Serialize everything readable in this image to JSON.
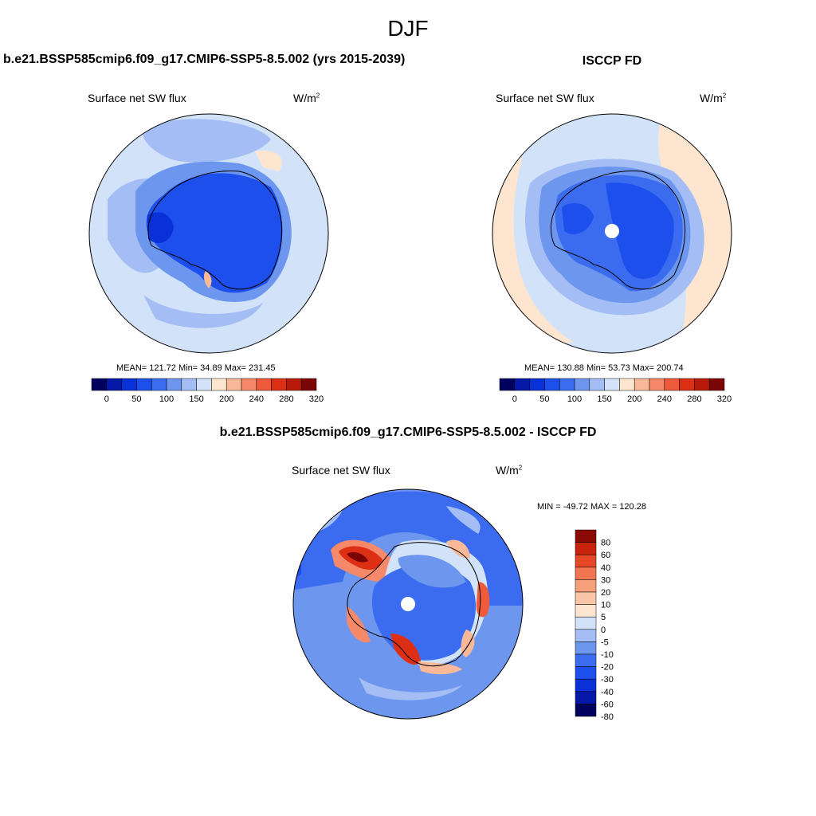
{
  "figure": {
    "title": "DJF"
  },
  "palettes": {
    "abs": [
      "#00005e",
      "#0518a8",
      "#0a30d8",
      "#1c4fec",
      "#3b6cf0",
      "#6d96ee",
      "#a4bdf4",
      "#d2e3f9",
      "#fde5d0",
      "#f9b999",
      "#f5896a",
      "#ef5a3a",
      "#dd2f14",
      "#b81a0a",
      "#7c0505"
    ],
    "diff": [
      "#00005e",
      "#0518a8",
      "#0a30d8",
      "#1c4fec",
      "#3b6cf0",
      "#6d96ee",
      "#a4bdf4",
      "#d2e3f9",
      "#fde5d0",
      "#f9c6a8",
      "#f5a07a",
      "#f07550",
      "#e64726",
      "#c8230c",
      "#8c0a04"
    ]
  },
  "chart_data": [
    {
      "type": "heatmap",
      "title": "b.e21.BSSP585cmip6.f09_g17.CMIP6-SSP5-8.5.002 (yrs 2015-2039)",
      "subtitle": "Surface net SW flux",
      "units_base": "W/m",
      "units_exp": "2",
      "projection": "south polar stereographic",
      "stats": "MEAN= 121.72  Min=  34.89  Max= 231.45",
      "mean": 121.72,
      "min": 34.89,
      "max": 231.45,
      "colorbar": {
        "orientation": "horizontal",
        "labels": [
          "0",
          "50",
          "100",
          "150",
          "200",
          "240",
          "280",
          "320"
        ]
      }
    },
    {
      "type": "heatmap",
      "title": "ISCCP FD",
      "subtitle": "Surface net SW flux",
      "units_base": "W/m",
      "units_exp": "2",
      "projection": "south polar stereographic",
      "stats": "MEAN= 130.88  Min=  53.73  Max= 200.74",
      "mean": 130.88,
      "min": 53.73,
      "max": 200.74,
      "colorbar": {
        "orientation": "horizontal",
        "labels": [
          "0",
          "50",
          "100",
          "150",
          "200",
          "240",
          "280",
          "320"
        ]
      }
    },
    {
      "type": "heatmap",
      "title": "b.e21.BSSP585cmip6.f09_g17.CMIP6-SSP5-8.5.002 - ISCCP FD",
      "subtitle": "Surface net SW flux",
      "units_base": "W/m",
      "units_exp": "2",
      "projection": "south polar stereographic",
      "stats": "MIN = -49.72 MAX = 120.28",
      "min": -49.72,
      "max": 120.28,
      "colorbar": {
        "orientation": "vertical",
        "labels": [
          "80",
          "60",
          "40",
          "30",
          "20",
          "10",
          "5",
          "0",
          "-5",
          "-10",
          "-20",
          "-30",
          "-40",
          "-60",
          "-80"
        ]
      }
    }
  ]
}
